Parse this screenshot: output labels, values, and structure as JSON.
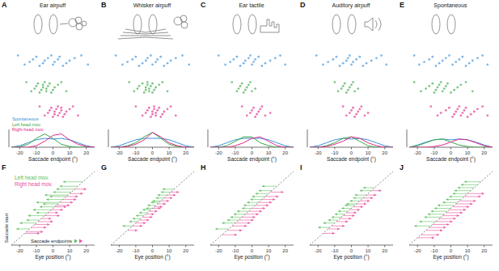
{
  "chart_data": [
    {
      "type": "line",
      "panel_label": "A",
      "title": "Ear airpuff",
      "xlabel": "Saccade endpoint (°)",
      "x": [
        -25,
        -20,
        -15,
        -10,
        -5,
        0,
        5,
        10,
        15,
        20,
        25
      ],
      "xlim": [
        -25,
        25
      ],
      "xticks": [
        -20,
        -10,
        0,
        10,
        20
      ],
      "ylim": [
        0,
        0.12
      ],
      "tick_labels": "x",
      "legend": "left",
      "series": [
        {
          "name": "Spontaneous",
          "color": "#3b8fd6",
          "values": [
            0,
            0.01,
            0.03,
            0.05,
            0.06,
            0.055,
            0.06,
            0.05,
            0.03,
            0.01,
            0
          ],
          "points": [
            -21,
            -17,
            -14,
            -12,
            -10,
            -8,
            -6,
            -5,
            -3,
            -1,
            0,
            1,
            3,
            4,
            6,
            8,
            10,
            13,
            17,
            21
          ]
        },
        {
          "name": "Left head mov.",
          "color": "#3aa845",
          "values": [
            0,
            0.003,
            0.02,
            0.06,
            0.09,
            0.06,
            0.02,
            0.005,
            0,
            0,
            0
          ],
          "points": [
            -16,
            -13,
            -11,
            -10,
            -9,
            -8,
            -7,
            -6,
            -6,
            -5,
            -4,
            -4,
            -3,
            -2,
            -1,
            0,
            1,
            3,
            5,
            8
          ]
        },
        {
          "name": "Right head mov.",
          "color": "#e0288c",
          "values": [
            0,
            0,
            0,
            0.01,
            0.04,
            0.08,
            0.09,
            0.05,
            0.02,
            0.005,
            0
          ],
          "points": [
            -8,
            -5,
            -3,
            -2,
            -1,
            0,
            1,
            1,
            2,
            3,
            3,
            4,
            5,
            5,
            6,
            7,
            8,
            10,
            12,
            15
          ]
        }
      ]
    },
    {
      "type": "line",
      "panel_label": "B",
      "title": "Whisker airpuff",
      "xlabel": "Saccade endpoint (°)",
      "x": [
        -25,
        -20,
        -15,
        -10,
        -5,
        0,
        5,
        10,
        15,
        20,
        25
      ],
      "xlim": [
        -25,
        25
      ],
      "xticks": [
        -20,
        -10,
        0,
        10,
        20
      ],
      "ylim": [
        0,
        0.12
      ],
      "tick_labels": "x",
      "series": [
        {
          "color": "#3b8fd6",
          "values": [
            0,
            0.01,
            0.03,
            0.05,
            0.06,
            0.06,
            0.06,
            0.05,
            0.03,
            0.01,
            0
          ],
          "points": [
            -22,
            -18,
            -15,
            -12,
            -10,
            -8,
            -6,
            -4,
            -3,
            -1,
            0,
            2,
            3,
            5,
            7,
            9,
            11,
            14,
            18,
            22
          ]
        },
        {
          "color": "#3aa845",
          "values": [
            0,
            0,
            0.01,
            0.03,
            0.07,
            0.1,
            0.06,
            0.02,
            0.005,
            0,
            0
          ],
          "points": [
            -14,
            -11,
            -9,
            -8,
            -6,
            -5,
            -4,
            -4,
            -3,
            -3,
            -2,
            -2,
            -1,
            0,
            0,
            1,
            2,
            4,
            6,
            9
          ]
        },
        {
          "color": "#e0288c",
          "values": [
            0,
            0,
            0.005,
            0.02,
            0.05,
            0.1,
            0.07,
            0.03,
            0.01,
            0,
            0
          ],
          "points": [
            -10,
            -6,
            -4,
            -3,
            -2,
            -1,
            0,
            0,
            1,
            1,
            2,
            2,
            3,
            4,
            5,
            6,
            7,
            9,
            11,
            14
          ]
        }
      ]
    },
    {
      "type": "line",
      "panel_label": "C",
      "title": "Ear tactile",
      "xlabel": "Saccade endpoint (°)",
      "x": [
        -25,
        -20,
        -15,
        -10,
        -5,
        0,
        5,
        10,
        15,
        20,
        25
      ],
      "xlim": [
        -25,
        25
      ],
      "xticks": [
        -20,
        -10,
        0,
        10,
        20
      ],
      "ylim": [
        0,
        0.12
      ],
      "tick_labels": "x",
      "series": [
        {
          "color": "#3b8fd6",
          "values": [
            0,
            0.01,
            0.03,
            0.05,
            0.06,
            0.06,
            0.06,
            0.05,
            0.03,
            0.01,
            0
          ],
          "points": [
            -20,
            -16,
            -13,
            -11,
            -9,
            -7,
            -5,
            -4,
            -2,
            -1,
            0,
            1,
            2,
            4,
            6,
            8,
            11,
            14,
            17,
            20
          ]
        },
        {
          "color": "#3aa845",
          "values": [
            0,
            0,
            0.01,
            0.04,
            0.07,
            0.07,
            0.03,
            0.01,
            0,
            0,
            0
          ],
          "points": [
            -12,
            -9,
            -8,
            -7,
            -6,
            -5,
            -4,
            -3,
            -2,
            -1,
            0,
            2
          ]
        },
        {
          "color": "#e0288c",
          "values": [
            0,
            0,
            0,
            0.01,
            0.03,
            0.06,
            0.07,
            0.04,
            0.01,
            0,
            0
          ],
          "points": [
            -6,
            -3,
            -1,
            0,
            1,
            2,
            3,
            4,
            5,
            6,
            8,
            11
          ]
        }
      ]
    },
    {
      "type": "line",
      "panel_label": "D",
      "title": "Auditory airpuff",
      "xlabel": "Saccade endpoint (°)",
      "x": [
        -25,
        -20,
        -15,
        -10,
        -5,
        0,
        5,
        10,
        15,
        20,
        25
      ],
      "xlim": [
        -25,
        25
      ],
      "xticks": [
        -20,
        -10,
        0,
        10,
        20
      ],
      "ylim": [
        0,
        0.12
      ],
      "tick_labels": "x",
      "series": [
        {
          "color": "#3b8fd6",
          "values": [
            0,
            0.01,
            0.03,
            0.05,
            0.06,
            0.055,
            0.06,
            0.05,
            0.03,
            0.01,
            0
          ],
          "points": [
            -21,
            -17,
            -14,
            -11,
            -9,
            -7,
            -5,
            -3,
            -2,
            -1,
            0,
            1,
            3,
            5,
            7,
            9,
            12,
            15,
            18,
            21
          ]
        },
        {
          "color": "#3aa845",
          "values": [
            0,
            0,
            0.01,
            0.03,
            0.06,
            0.07,
            0.04,
            0.01,
            0,
            0,
            0
          ],
          "points": [
            -10,
            -8,
            -6,
            -5,
            -4,
            -3,
            -2,
            -1,
            0,
            1,
            2,
            4
          ]
        },
        {
          "color": "#e0288c",
          "values": [
            0,
            0,
            0.005,
            0.02,
            0.04,
            0.07,
            0.06,
            0.03,
            0.01,
            0,
            0
          ],
          "points": [
            -5,
            -3,
            -1,
            0,
            1,
            2,
            3,
            4,
            5,
            6,
            8,
            10
          ]
        }
      ]
    },
    {
      "type": "line",
      "panel_label": "E",
      "title": "Spontaneous",
      "xlabel": "Saccade endpoint (°)",
      "x": [
        -25,
        -20,
        -15,
        -10,
        -5,
        0,
        5,
        10,
        15,
        20,
        25
      ],
      "xlim": [
        -25,
        25
      ],
      "xticks": [
        -20,
        -10,
        0,
        10,
        20
      ],
      "ylim": [
        0,
        0.12
      ],
      "tick_labels": "x",
      "series": [
        {
          "color": "#3b8fd6",
          "values": [
            0,
            0.015,
            0.035,
            0.05,
            0.055,
            0.05,
            0.055,
            0.05,
            0.035,
            0.015,
            0
          ],
          "points": [
            -22,
            -19,
            -16,
            -13,
            -11,
            -9,
            -7,
            -5,
            -3,
            -1,
            1,
            3,
            5,
            7,
            9,
            11,
            13,
            16,
            19,
            22
          ]
        },
        {
          "color": "#3aa845",
          "values": [
            0,
            0.01,
            0.03,
            0.05,
            0.055,
            0.035,
            0.015,
            0.005,
            0,
            0,
            0
          ],
          "points": [
            -22,
            -18,
            -15,
            -13,
            -11,
            -10,
            -9,
            -8,
            -7,
            -6,
            -5,
            -4,
            -3,
            -2,
            0,
            2,
            4,
            6,
            9,
            13
          ]
        },
        {
          "color": "#e0288c",
          "values": [
            0,
            0,
            0,
            0.005,
            0.015,
            0.035,
            0.055,
            0.05,
            0.03,
            0.01,
            0
          ],
          "points": [
            -12,
            -8,
            -6,
            -3,
            -1,
            1,
            2,
            3,
            4,
            5,
            6,
            7,
            8,
            9,
            10,
            12,
            14,
            16,
            19,
            22
          ]
        }
      ]
    },
    {
      "type": "scatter",
      "panel_label": "F",
      "xlabel": "Eye position (°)",
      "xlim": [
        -25,
        25
      ],
      "xticks": [
        -20,
        -10,
        0,
        10,
        20
      ],
      "ylim": [
        -25,
        25
      ],
      "tick_labels": "x",
      "annotations": [
        "Saccade start",
        "Saccade endpoints"
      ],
      "series": [
        {
          "name": "Left head mov.",
          "color": "#5cbf5c",
          "start": [
            -14,
            -10,
            -8,
            -5,
            -3,
            -1,
            1,
            3,
            4,
            6,
            8,
            9,
            11,
            13,
            15,
            18
          ],
          "values": [
            -22,
            -20,
            -16,
            -15,
            -10,
            -12,
            -8,
            -6,
            -10,
            -4,
            -2,
            -5,
            0,
            2,
            4,
            6
          ]
        },
        {
          "name": "Right head mov.",
          "color": "#e84a9a",
          "start": [
            -17,
            -16,
            -13,
            -11,
            -9,
            -7,
            -5,
            -3,
            -1,
            1,
            2,
            4,
            6,
            8,
            10,
            13
          ],
          "values": [
            -8,
            -6,
            -4,
            -2,
            0,
            -1,
            4,
            3,
            6,
            8,
            10,
            12,
            14,
            15,
            18,
            20
          ]
        }
      ]
    },
    {
      "type": "scatter",
      "panel_label": "G",
      "xlabel": "Eye position (°)",
      "xlim": [
        -25,
        25
      ],
      "xticks": [
        -20,
        -10,
        0,
        10,
        20
      ],
      "ylim": [
        -25,
        25
      ],
      "tick_labels": "x",
      "series": [
        {
          "color": "#5cbf5c",
          "start": [
            -12,
            -9,
            -7,
            -5,
            -3,
            -1,
            0,
            2,
            4,
            5,
            7,
            9,
            11,
            13
          ],
          "values": [
            -18,
            -14,
            -12,
            -10,
            -8,
            -6,
            -4,
            -3,
            -1,
            0,
            2,
            3,
            5,
            6
          ]
        },
        {
          "color": "#e84a9a",
          "start": [
            -15,
            -12,
            -10,
            -8,
            -6,
            -4,
            -2,
            0,
            1,
            3,
            5,
            7,
            9,
            11
          ],
          "values": [
            -9,
            -6,
            -4,
            -2,
            0,
            1,
            3,
            5,
            6,
            8,
            10,
            12,
            14,
            16
          ]
        }
      ]
    },
    {
      "type": "scatter",
      "panel_label": "H",
      "xlabel": "Eye position (°)",
      "xlim": [
        -25,
        25
      ],
      "xticks": [
        -20,
        -10,
        0,
        10,
        20
      ],
      "ylim": [
        -25,
        25
      ],
      "tick_labels": "x",
      "series": [
        {
          "color": "#5cbf5c",
          "start": [
            -14,
            -10,
            -8,
            -6,
            -4,
            -2,
            0,
            2,
            4,
            6,
            8,
            10,
            12,
            15
          ],
          "values": [
            -22,
            -18,
            -15,
            -13,
            -11,
            -9,
            -6,
            -5,
            -3,
            -1,
            0,
            2,
            4,
            6
          ]
        },
        {
          "color": "#e84a9a",
          "start": [
            -18,
            -15,
            -12,
            -10,
            -8,
            -6,
            -4,
            -2,
            0,
            2,
            4,
            6,
            8,
            11
          ],
          "values": [
            -9,
            -6,
            -3,
            -1,
            1,
            2,
            4,
            6,
            8,
            10,
            12,
            14,
            16,
            19
          ]
        }
      ]
    },
    {
      "type": "scatter",
      "panel_label": "I",
      "xlabel": "Eye position (°)",
      "xlim": [
        -25,
        25
      ],
      "xticks": [
        -20,
        -10,
        0,
        10,
        20
      ],
      "ylim": [
        -25,
        25
      ],
      "tick_labels": "x",
      "series": [
        {
          "color": "#5cbf5c",
          "start": [
            -13,
            -10,
            -8,
            -6,
            -4,
            -2,
            0,
            2,
            3,
            5,
            7,
            9,
            12,
            14
          ],
          "values": [
            -20,
            -17,
            -14,
            -12,
            -10,
            -8,
            -6,
            -4,
            -3,
            -1,
            1,
            2,
            5,
            7
          ]
        },
        {
          "color": "#e84a9a",
          "start": [
            -17,
            -14,
            -12,
            -9,
            -7,
            -5,
            -3,
            -1,
            1,
            3,
            5,
            7,
            9,
            12
          ],
          "values": [
            -10,
            -7,
            -4,
            -2,
            0,
            2,
            3,
            5,
            7,
            9,
            11,
            13,
            15,
            18
          ]
        }
      ]
    },
    {
      "type": "scatter",
      "panel_label": "J",
      "xlabel": "Eye position (°)",
      "xlim": [
        -25,
        25
      ],
      "xticks": [
        -20,
        -10,
        0,
        10,
        20
      ],
      "ylim": [
        -25,
        25
      ],
      "tick_labels": "x",
      "series": [
        {
          "color": "#5cbf5c",
          "start": [
            -12,
            -9,
            -6,
            -4,
            -2,
            0,
            2,
            4,
            6,
            8,
            10,
            12,
            14,
            16,
            18
          ],
          "values": [
            -22,
            -19,
            -16,
            -14,
            -12,
            -10,
            -8,
            -5,
            -3,
            -1,
            1,
            2,
            4,
            6,
            8
          ]
        },
        {
          "color": "#e84a9a",
          "start": [
            -20,
            -18,
            -15,
            -13,
            -11,
            -9,
            -7,
            -5,
            -3,
            -1,
            1,
            3,
            5,
            8,
            10
          ],
          "values": [
            -10,
            -7,
            -5,
            -3,
            -1,
            1,
            3,
            5,
            7,
            9,
            11,
            13,
            15,
            18,
            20
          ]
        }
      ]
    }
  ]
}
